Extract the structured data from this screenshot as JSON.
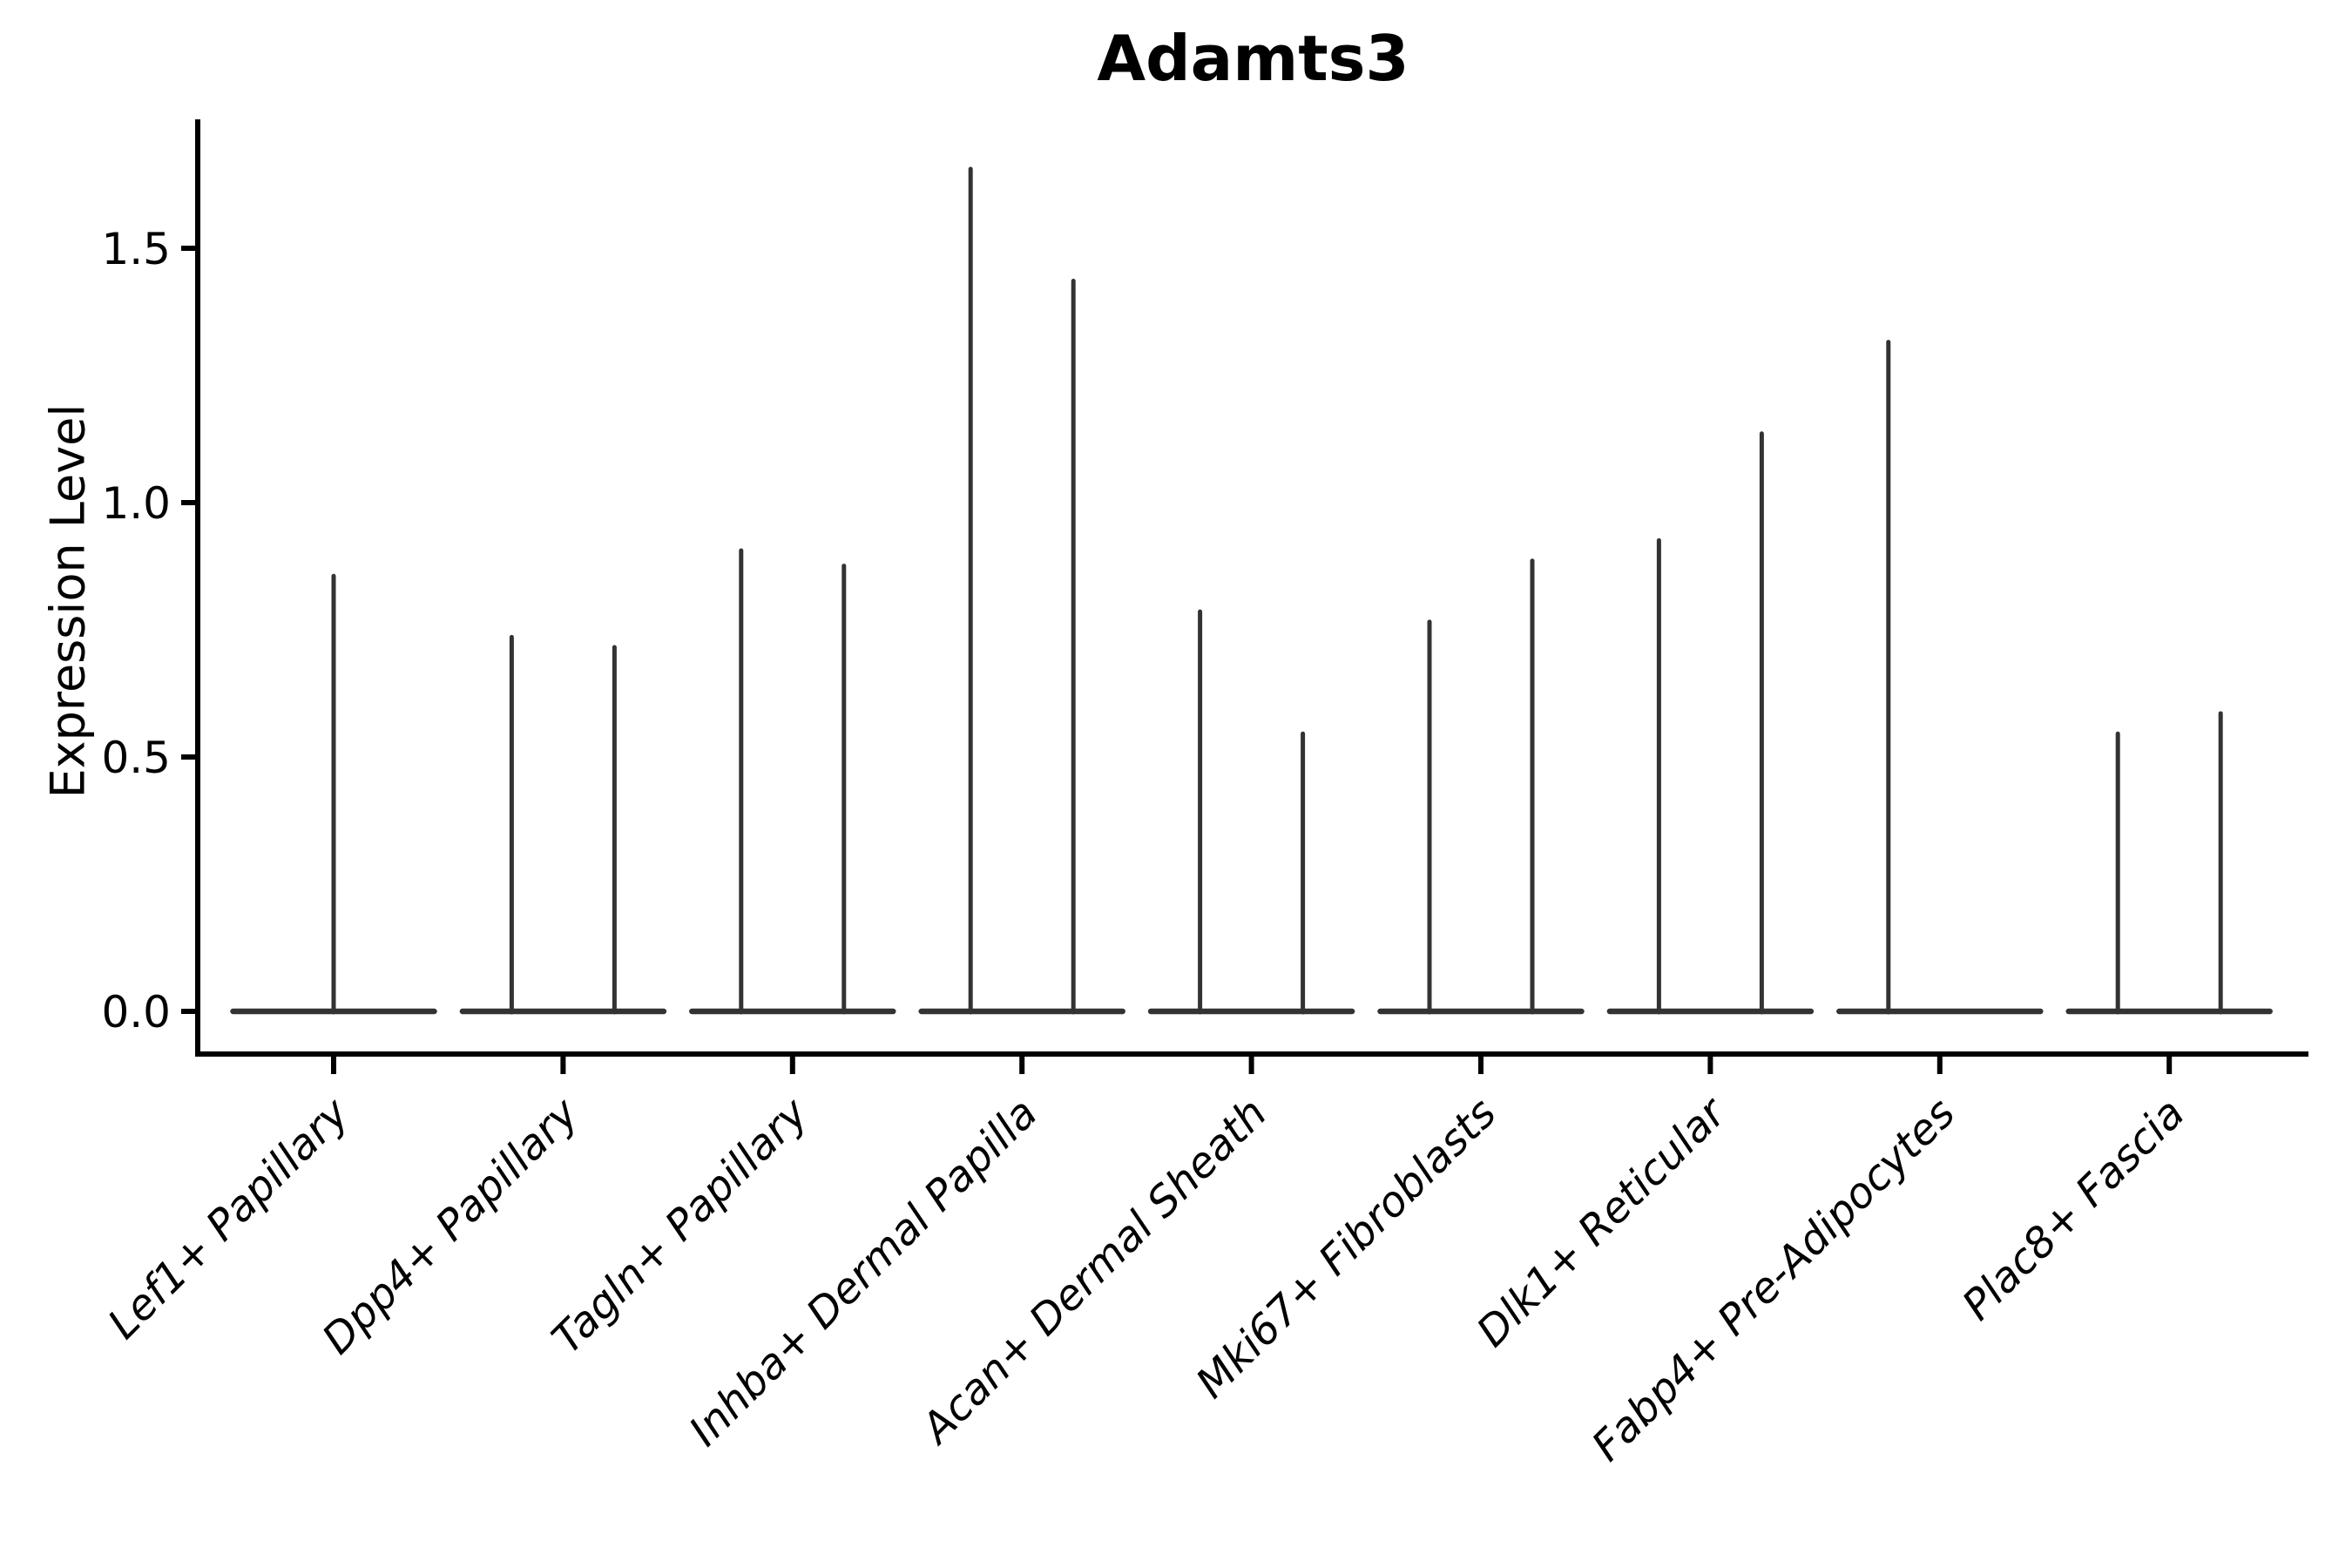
{
  "chart_data": {
    "type": "violin",
    "title": "Adamts3",
    "ylabel": "Expression Level",
    "xlabel": "",
    "legend": "none",
    "grid": false,
    "ytick_labels": [
      "0.0",
      "0.5",
      "1.0",
      "1.5"
    ],
    "ytick_values": [
      0.0,
      0.5,
      1.0,
      1.5
    ],
    "ylim": [
      -0.08,
      1.76
    ],
    "categories": [
      "Lef1+ Papillary",
      "Dpp4+ Papillary",
      "Tagln+ Papillary",
      "Inhba+ Dermal Papilla",
      "Acan+ Dermal Sheath",
      "Mki67+ Fibroblasts",
      "Dlk1+ Reticular",
      "Fabp4+ Pre-Adipocytes",
      "Plac8+ Fascia"
    ],
    "violins": [
      {
        "category": "Lef1+ Papillary",
        "spikes": [
          {
            "position": "center",
            "max": 0.86
          }
        ]
      },
      {
        "category": "Dpp4+ Papillary",
        "spikes": [
          {
            "position": "left",
            "max": 0.74
          },
          {
            "position": "right",
            "max": 0.72
          }
        ]
      },
      {
        "category": "Tagln+ Papillary",
        "spikes": [
          {
            "position": "left",
            "max": 0.91
          },
          {
            "position": "right",
            "max": 0.88
          }
        ]
      },
      {
        "category": "Inhba+ Dermal Papilla",
        "spikes": [
          {
            "position": "left",
            "max": 1.66
          },
          {
            "position": "right",
            "max": 1.44
          }
        ]
      },
      {
        "category": "Acan+ Dermal Sheath",
        "spikes": [
          {
            "position": "left",
            "max": 0.79
          },
          {
            "position": "right",
            "max": 0.55
          }
        ]
      },
      {
        "category": "Mki67+ Fibroblasts",
        "spikes": [
          {
            "position": "left",
            "max": 0.77
          },
          {
            "position": "right",
            "max": 0.89
          }
        ]
      },
      {
        "category": "Dlk1+ Reticular",
        "spikes": [
          {
            "position": "left",
            "max": 0.93
          },
          {
            "position": "right",
            "max": 1.14
          }
        ]
      },
      {
        "category": "Fabp4+ Pre-Adipocytes",
        "spikes": [
          {
            "position": "left",
            "max": 1.32
          }
        ]
      },
      {
        "category": "Plac8+ Fascia",
        "spikes": [
          {
            "position": "left",
            "max": 0.55
          },
          {
            "position": "right",
            "max": 0.59
          }
        ]
      }
    ],
    "baseline_value": 0.0
  },
  "colors": {
    "axis": "#000000",
    "text": "#000000",
    "violin": "#333333",
    "background": "#ffffff"
  }
}
